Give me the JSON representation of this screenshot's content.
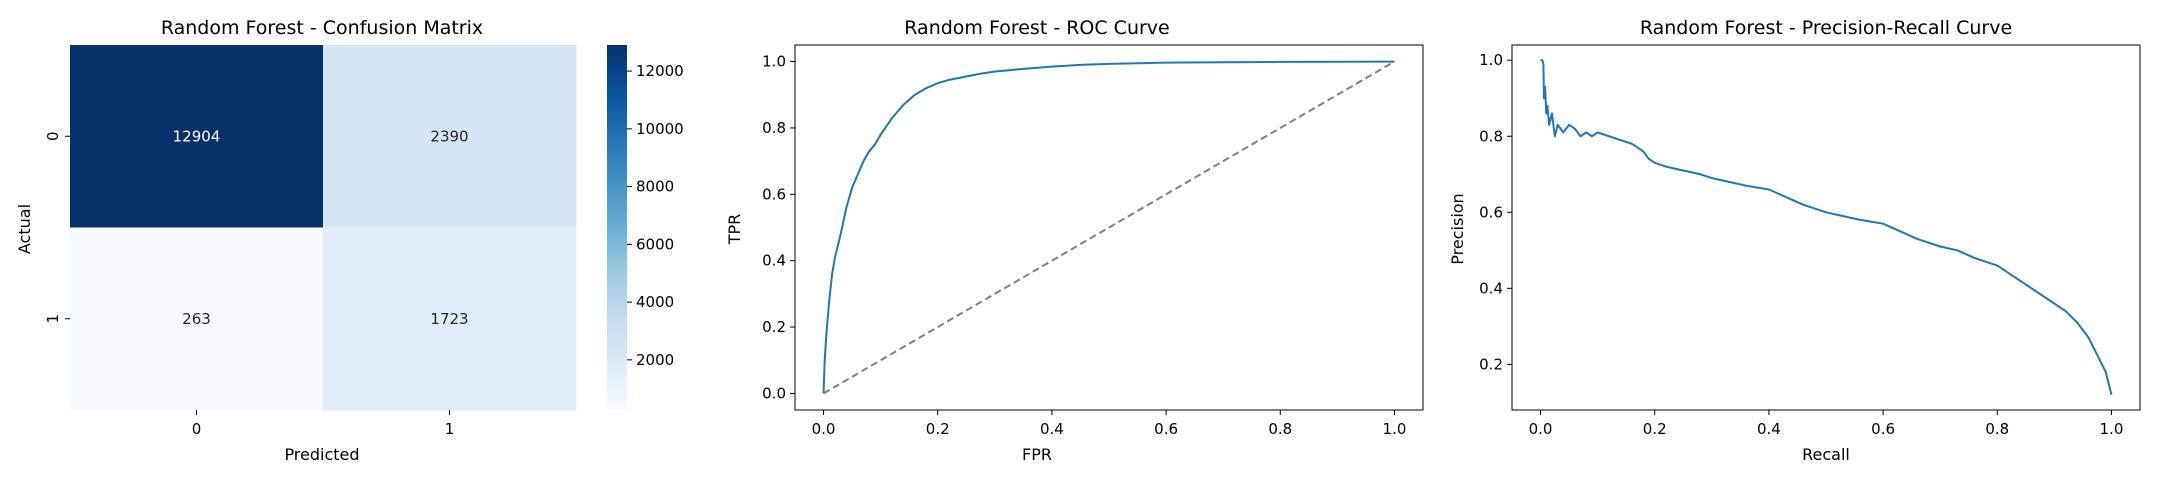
{
  "chart_data": [
    {
      "type": "heatmap",
      "title": "Random Forest - Confusion Matrix",
      "xlabel": "Predicted",
      "ylabel": "Actual",
      "x_categories": [
        "0",
        "1"
      ],
      "y_categories": [
        "0",
        "1"
      ],
      "values": [
        [
          12904,
          2390
        ],
        [
          263,
          1723
        ]
      ],
      "colormap": "Blues",
      "colorbar": {
        "min": 263,
        "max": 12904,
        "ticks": [
          2000,
          4000,
          6000,
          8000,
          10000,
          12000
        ]
      },
      "colors": {
        "dark": "#08306b",
        "light": "#f7fbff"
      }
    },
    {
      "type": "line",
      "title": "Random Forest - ROC Curve",
      "xlabel": "FPR",
      "ylabel": "TPR",
      "xlim": [
        -0.05,
        1.05
      ],
      "ylim": [
        -0.05,
        1.05
      ],
      "xticks": [
        0.0,
        0.2,
        0.4,
        0.6,
        0.8,
        1.0
      ],
      "yticks": [
        0.0,
        0.2,
        0.4,
        0.6,
        0.8,
        1.0
      ],
      "grid": false,
      "series": [
        {
          "color": "#1f77b4",
          "x": [
            0,
            0.002,
            0.005,
            0.01,
            0.015,
            0.02,
            0.03,
            0.04,
            0.05,
            0.06,
            0.07,
            0.08,
            0.09,
            0.1,
            0.12,
            0.14,
            0.16,
            0.18,
            0.2,
            0.22,
            0.25,
            0.28,
            0.3,
            0.35,
            0.4,
            0.45,
            0.5,
            0.55,
            0.6,
            0.7,
            0.8,
            0.9,
            1.0
          ],
          "y": [
            0,
            0.1,
            0.18,
            0.28,
            0.36,
            0.41,
            0.48,
            0.56,
            0.62,
            0.66,
            0.7,
            0.73,
            0.75,
            0.78,
            0.83,
            0.87,
            0.9,
            0.92,
            0.935,
            0.945,
            0.955,
            0.965,
            0.97,
            0.978,
            0.985,
            0.99,
            0.993,
            0.995,
            0.997,
            0.998,
            0.999,
            0.9995,
            1.0
          ]
        },
        {
          "color": "#808080",
          "dashed": true,
          "x": [
            0,
            1
          ],
          "y": [
            0,
            1
          ]
        }
      ]
    },
    {
      "type": "line",
      "title": "Random Forest - Precision-Recall Curve",
      "xlabel": "Recall",
      "ylabel": "Precision",
      "xlim": [
        -0.05,
        1.05
      ],
      "ylim": [
        0.08,
        1.04
      ],
      "xticks": [
        0.0,
        0.2,
        0.4,
        0.6,
        0.8,
        1.0
      ],
      "yticks": [
        0.2,
        0.4,
        0.6,
        0.8,
        1.0
      ],
      "grid": false,
      "series": [
        {
          "color": "#1f77b4",
          "x": [
            0,
            0.003,
            0.005,
            0.006,
            0.008,
            0.01,
            0.012,
            0.015,
            0.02,
            0.025,
            0.03,
            0.035,
            0.04,
            0.05,
            0.06,
            0.07,
            0.08,
            0.09,
            0.1,
            0.12,
            0.14,
            0.16,
            0.18,
            0.19,
            0.2,
            0.22,
            0.25,
            0.28,
            0.3,
            0.33,
            0.36,
            0.4,
            0.43,
            0.46,
            0.5,
            0.53,
            0.56,
            0.6,
            0.63,
            0.66,
            0.7,
            0.73,
            0.76,
            0.8,
            0.83,
            0.86,
            0.89,
            0.92,
            0.94,
            0.96,
            0.97,
            0.98,
            0.99,
            0.995,
            1.0
          ],
          "y": [
            1.0,
            1.0,
            0.99,
            0.9,
            0.93,
            0.86,
            0.88,
            0.83,
            0.86,
            0.8,
            0.83,
            0.82,
            0.81,
            0.83,
            0.82,
            0.8,
            0.81,
            0.8,
            0.81,
            0.8,
            0.79,
            0.78,
            0.76,
            0.74,
            0.73,
            0.72,
            0.71,
            0.7,
            0.69,
            0.68,
            0.67,
            0.66,
            0.64,
            0.62,
            0.6,
            0.59,
            0.58,
            0.57,
            0.55,
            0.53,
            0.51,
            0.5,
            0.48,
            0.46,
            0.43,
            0.4,
            0.37,
            0.34,
            0.31,
            0.27,
            0.24,
            0.21,
            0.18,
            0.15,
            0.12
          ]
        }
      ]
    }
  ]
}
